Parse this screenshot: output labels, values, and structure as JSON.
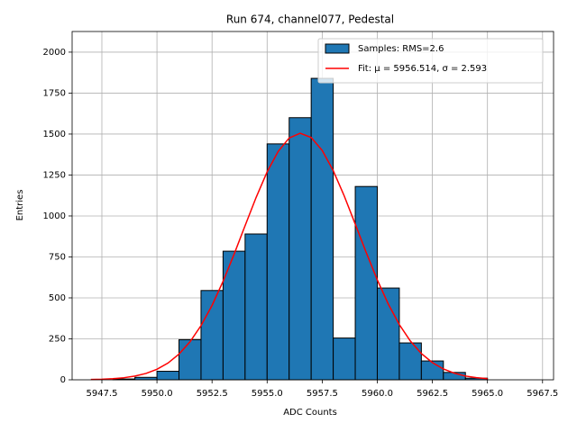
{
  "chart_data": {
    "type": "histogram",
    "title": "Run 674, channel077, Pedestal",
    "xlabel": "ADC Counts",
    "ylabel": "Entries",
    "xlim": [
      5946.15,
      5968.0
    ],
    "ylim": [
      0,
      2126
    ],
    "xticks": [
      5947.5,
      {
        "value": 5950,
        "label": "5950.0"
      },
      5952.5,
      {
        "value": 5955,
        "label": "5955.0"
      },
      5957.5,
      {
        "value": 5960,
        "label": "5960.0"
      },
      5962.5,
      {
        "value": 5965,
        "label": "5965.0"
      },
      5967.5
    ],
    "yticks": [
      0,
      250,
      500,
      750,
      1000,
      1250,
      1500,
      1750,
      2000
    ],
    "grid": true,
    "legend": "upper right",
    "series": [
      {
        "name": "Samples: RMS=2.6",
        "type": "bar",
        "color": "#1f77b4",
        "bins": [
          5948,
          5949,
          5950,
          5951,
          5952,
          5953,
          5954,
          5955,
          5956,
          5957,
          5958,
          5959,
          5960,
          5961,
          5962,
          5963,
          5964,
          5965
        ],
        "values": [
          5,
          15,
          52,
          245,
          545,
          785,
          890,
          1440,
          1600,
          1840,
          255,
          1180,
          560,
          225,
          115,
          45,
          10
        ]
      },
      {
        "name": "Fit: μ = 5956.514, σ = 2.593",
        "type": "line",
        "color": "#ff0000",
        "x": [
          5947,
          5947.5,
          5948,
          5948.5,
          5949,
          5949.5,
          5950,
          5950.5,
          5951,
          5951.5,
          5952,
          5952.5,
          5953,
          5953.5,
          5954,
          5954.5,
          5955,
          5955.5,
          5956,
          5956.5,
          5957,
          5957.5,
          5958,
          5958.5,
          5959,
          5959.5,
          5960,
          5960.5,
          5961,
          5961.5,
          5962,
          5962.5,
          5963,
          5963.5,
          5964,
          5964.5,
          5965
        ],
        "values": [
          1.8,
          3.6,
          6.9,
          12.7,
          22.6,
          38.8,
          64.1,
          102.2,
          157,
          232,
          331,
          454,
          601,
          766,
          941,
          1113,
          1269,
          1394,
          1476,
          1505,
          1479,
          1400,
          1277,
          1122,
          950,
          776,
          610,
          462,
          337,
          237,
          160,
          105,
          66,
          40,
          23,
          13,
          7
        ]
      }
    ]
  }
}
